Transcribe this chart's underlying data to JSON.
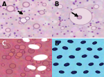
{
  "panels": [
    "A",
    "B",
    "C",
    "D"
  ],
  "panel_A": {
    "bg_r": 0.87,
    "bg_g": 0.75,
    "bg_b": 0.82,
    "noise": 0.06,
    "label": "A",
    "label_color": "black"
  },
  "panel_B": {
    "bg_r": 0.84,
    "bg_g": 0.74,
    "bg_b": 0.82,
    "noise": 0.05,
    "label": "B",
    "label_color": "black"
  },
  "panel_C": {
    "bg_r": 0.78,
    "bg_g": 0.42,
    "bg_b": 0.52,
    "noise": 0.07,
    "label": "C",
    "label_color": "white"
  },
  "panel_D": {
    "bg_r": 0.5,
    "bg_g": 0.82,
    "bg_b": 0.92,
    "noise": 0.04,
    "label": "D",
    "label_color": "black"
  },
  "label_fontsize": 6,
  "fig_width": 1.5,
  "fig_height": 1.13,
  "dpi": 100
}
